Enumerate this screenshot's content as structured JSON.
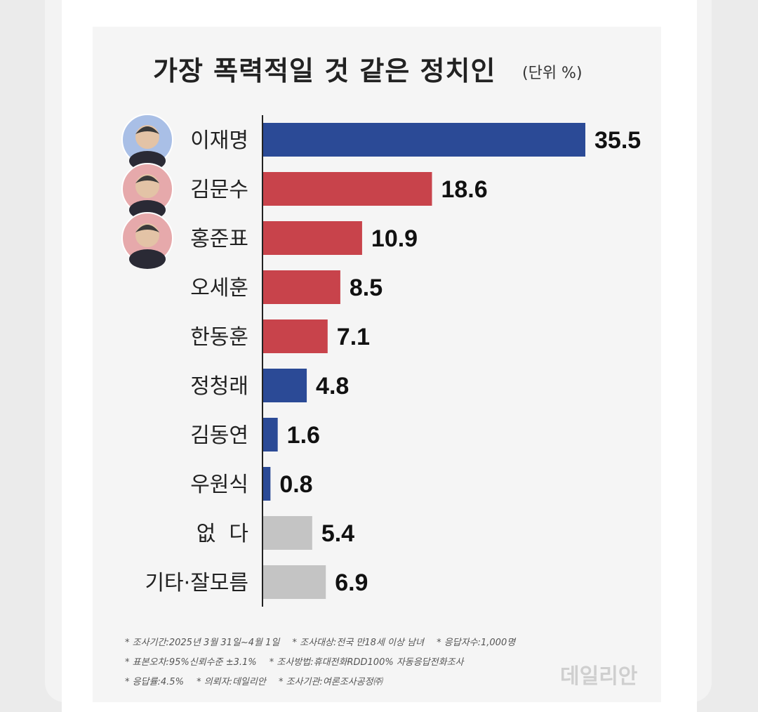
{
  "chart_data": {
    "type": "bar",
    "orientation": "horizontal",
    "title": "가장 폭력적일 것 같은 정치인",
    "unit": "(단위 %)",
    "categories": [
      "이재명",
      "김문수",
      "홍준표",
      "오세훈",
      "한동훈",
      "정청래",
      "김동연",
      "우원식",
      "없  다",
      "기타·잘모름"
    ],
    "values": [
      35.5,
      18.6,
      10.9,
      8.5,
      7.1,
      4.8,
      1.6,
      0.8,
      5.4,
      6.9
    ],
    "value_labels": [
      "35.5",
      "18.6",
      "10.9",
      "8.5",
      "7.1",
      "4.8",
      "1.6",
      "0.8",
      "5.4",
      "6.9"
    ],
    "bar_colors": [
      "#2b4a96",
      "#c8434b",
      "#c8434b",
      "#c8434b",
      "#c8434b",
      "#2b4a96",
      "#2b4a96",
      "#2b4a96",
      "#c4c4c4",
      "#c4c4c4"
    ],
    "photo_colors": [
      "#a9bfe6",
      "#e6a9ab",
      "#e6a9ab"
    ],
    "xlim": [
      0,
      35.5
    ],
    "grid": false,
    "legend": "none"
  },
  "footnotes": [
    [
      "* 조사기간:2025년 3월 31일~4월 1일",
      "* 조사대상:전국 만18세 이상 남녀",
      "* 응답자수:1,000명"
    ],
    [
      "* 표본오차:95%신뢰수준 ±3.1%",
      "* 조사방법:휴대전화RDD100% 자동응답전화조사"
    ],
    [
      "* 응답률:4.5%",
      "* 의뢰자:데일리안",
      "* 조사기관:여론조사공정㈜"
    ]
  ],
  "watermark": "데일리안"
}
